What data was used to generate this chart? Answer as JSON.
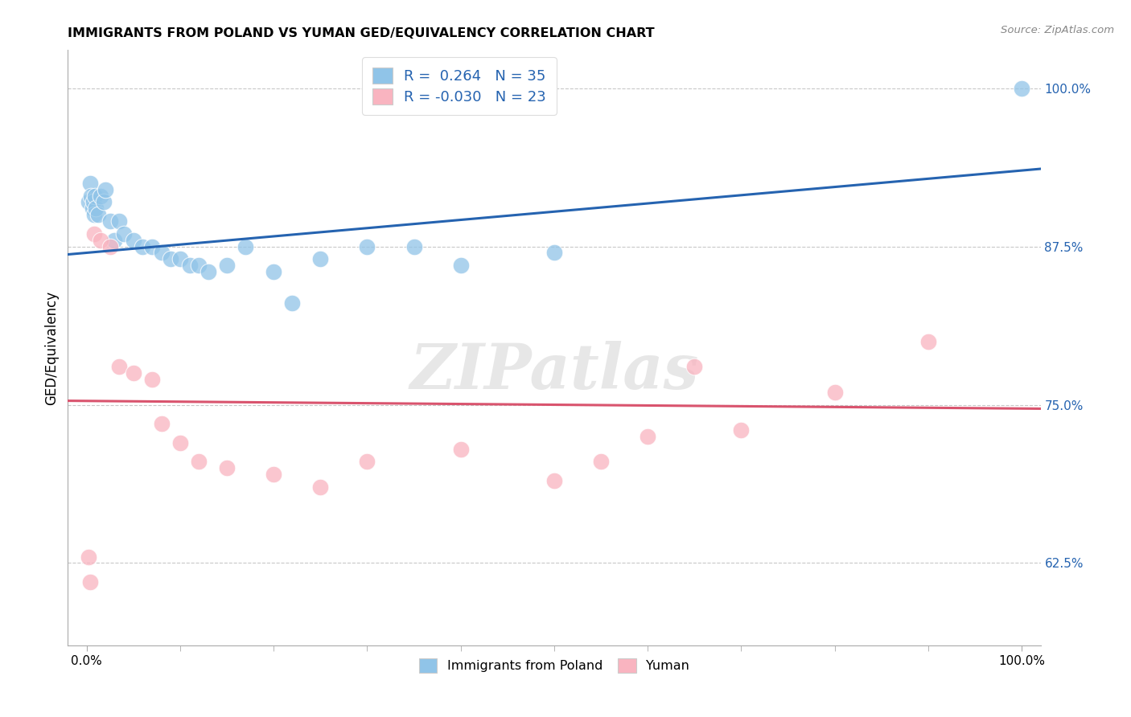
{
  "title": "IMMIGRANTS FROM POLAND VS YUMAN GED/EQUIVALENCY CORRELATION CHART",
  "source": "Source: ZipAtlas.com",
  "ylabel": "GED/Equivalency",
  "legend_labels": [
    "Immigrants from Poland",
    "Yuman"
  ],
  "blue_R": "0.264",
  "blue_N": "35",
  "pink_R": "-0.030",
  "pink_N": "23",
  "blue_color": "#90c4e8",
  "pink_color": "#f9b4c0",
  "blue_line_color": "#2563b0",
  "pink_line_color": "#d9546e",
  "right_yticks": [
    62.5,
    75.0,
    87.5,
    100.0
  ],
  "blue_scatter_x": [
    0.2,
    0.4,
    0.5,
    0.6,
    0.7,
    0.8,
    0.9,
    1.0,
    1.2,
    1.5,
    1.8,
    2.0,
    2.5,
    3.0,
    3.5,
    4.0,
    5.0,
    6.0,
    7.0,
    8.0,
    9.0,
    10.0,
    11.0,
    12.0,
    13.0,
    15.0,
    17.0,
    20.0,
    22.0,
    25.0,
    30.0,
    35.0,
    40.0,
    50.0,
    100.0
  ],
  "blue_scatter_y": [
    91.0,
    92.5,
    91.5,
    90.5,
    91.0,
    90.0,
    91.5,
    90.5,
    90.0,
    91.5,
    91.0,
    92.0,
    89.5,
    88.0,
    89.5,
    88.5,
    88.0,
    87.5,
    87.5,
    87.0,
    86.5,
    86.5,
    86.0,
    86.0,
    85.5,
    86.0,
    87.5,
    85.5,
    83.0,
    86.5,
    87.5,
    87.5,
    86.0,
    87.0,
    100.0
  ],
  "pink_scatter_x": [
    0.2,
    0.4,
    0.8,
    1.5,
    2.5,
    3.5,
    5.0,
    7.0,
    8.0,
    10.0,
    12.0,
    15.0,
    20.0,
    25.0,
    30.0,
    40.0,
    50.0,
    55.0,
    60.0,
    65.0,
    70.0,
    80.0,
    90.0
  ],
  "pink_scatter_y": [
    63.0,
    61.0,
    88.5,
    88.0,
    87.5,
    78.0,
    77.5,
    77.0,
    73.5,
    72.0,
    70.5,
    70.0,
    69.5,
    68.5,
    70.5,
    71.5,
    69.0,
    70.5,
    72.5,
    78.0,
    73.0,
    76.0,
    80.0
  ],
  "xmin": -2.0,
  "xmax": 102.0,
  "ymin": 56.0,
  "ymax": 103.0,
  "background_color": "#ffffff",
  "grid_color": "#c8c8c8",
  "blue_trend_x0": 0.0,
  "blue_trend_y0": 87.0,
  "blue_trend_x1": 100.0,
  "blue_trend_y1": 93.5,
  "pink_trend_x0": 0.0,
  "pink_trend_y0": 75.3,
  "pink_trend_x1": 100.0,
  "pink_trend_y1": 74.7
}
